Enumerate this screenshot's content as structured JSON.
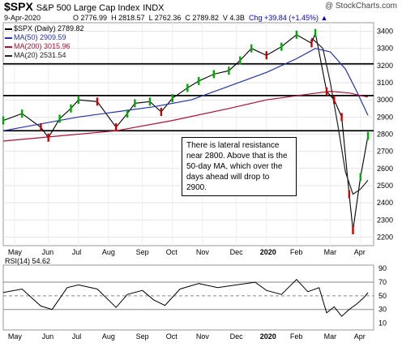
{
  "header": {
    "symbol": "$SPX",
    "name": "S&P 500 Large Cap Index",
    "exchange": "INDX",
    "date": "9-Apr-2020",
    "open": "O 2776.99",
    "high": "H 2818.57",
    "low": "L 2762.36",
    "close": "C 2789.82",
    "volume": "V 4.3B",
    "change": "Chg +39.84 (+1.45%)",
    "change_arrow": "▲",
    "logo": "@ StockCharts.com"
  },
  "legend": {
    "price": "$SPX (Daily) 2789.82",
    "ma50": "MA(50) 2909.59",
    "ma200": "MA(200) 3015.96",
    "ma20": "MA(20) 2531.54"
  },
  "annotation": "There is lateral resistance near 2800. Above that is the 50-day MA, which over the days ahead will drop to 2900.",
  "rsi_label": "RSI(14) 54.62",
  "colors": {
    "up": "#00aa00",
    "down": "#cc0000",
    "ma50": "#2233aa",
    "ma200": "#aa1133",
    "ma20": "#222222",
    "rsi": "#000000",
    "rsi_fill": "#6aa86a"
  },
  "chart_data": [
    {
      "type": "line",
      "title": "$SPX S&P 500 Large Cap Index",
      "x_labels": [
        "May",
        "Jun",
        "Jul",
        "Aug",
        "Sep",
        "Oct",
        "Nov",
        "Dec",
        "2020",
        "Feb",
        "Mar",
        "Apr"
      ],
      "y_ticks": [
        2200,
        2300,
        2400,
        2500,
        2600,
        2700,
        2800,
        2900,
        3000,
        3100,
        3200,
        3300,
        3400
      ],
      "ylim": [
        2150,
        3450
      ],
      "horizontal_lines": [
        3210,
        3025,
        2820
      ],
      "series": [
        {
          "name": "$SPX (Daily)",
          "x": [
            2019.3,
            2019.35,
            2019.4,
            2019.42,
            2019.45,
            2019.48,
            2019.5,
            2019.55,
            2019.6,
            2019.63,
            2019.65,
            2019.69,
            2019.72,
            2019.75,
            2019.79,
            2019.82,
            2019.86,
            2019.9,
            2019.93,
            2019.96,
            2020.0,
            2020.04,
            2020.08,
            2020.12,
            2020.13,
            2020.16,
            2020.18,
            2020.2,
            2020.22,
            2020.23,
            2020.25,
            2020.27
          ],
          "values": [
            2880,
            2920,
            2840,
            2780,
            2890,
            2950,
            3000,
            2990,
            2840,
            2920,
            2980,
            2990,
            2930,
            3010,
            3070,
            3110,
            3150,
            3170,
            3230,
            3300,
            3260,
            3310,
            3380,
            3330,
            3390,
            3050,
            3000,
            2900,
            2450,
            2240,
            2550,
            2789.82
          ]
        },
        {
          "name": "MA(50)",
          "x": [
            2019.3,
            2019.4,
            2019.5,
            2019.6,
            2019.7,
            2019.8,
            2019.9,
            2020.0,
            2020.08,
            2020.13,
            2020.17,
            2020.21,
            2020.24,
            2020.27
          ],
          "values": [
            2820,
            2860,
            2900,
            2930,
            2960,
            3000,
            3080,
            3160,
            3240,
            3300,
            3280,
            3180,
            3050,
            2909.59
          ]
        },
        {
          "name": "MA(200)",
          "x": [
            2019.3,
            2019.45,
            2019.6,
            2019.75,
            2019.9,
            2020.0,
            2020.1,
            2020.17,
            2020.22,
            2020.27
          ],
          "values": [
            2760,
            2790,
            2820,
            2880,
            2950,
            3000,
            3030,
            3050,
            3040,
            3015.96
          ]
        },
        {
          "name": "MA(20)",
          "x": [
            2020.12,
            2020.15,
            2020.17,
            2020.19,
            2020.21,
            2020.23,
            2020.25,
            2020.27
          ],
          "values": [
            3360,
            3300,
            3100,
            2850,
            2580,
            2450,
            2480,
            2531.54
          ]
        }
      ]
    },
    {
      "type": "line",
      "title": "RSI(14) 54.62",
      "y_ticks": [
        10,
        30,
        50,
        70,
        90
      ],
      "ylim": [
        0,
        95
      ],
      "reference_lines": [
        70,
        50,
        30
      ],
      "series": [
        {
          "name": "RSI(14)",
          "x": [
            2019.3,
            2019.35,
            2019.4,
            2019.43,
            2019.47,
            2019.5,
            2019.55,
            2019.6,
            2019.63,
            2019.67,
            2019.7,
            2019.73,
            2019.77,
            2019.82,
            2019.87,
            2019.92,
            2019.97,
            2020.0,
            2020.04,
            2020.08,
            2020.11,
            2020.14,
            2020.16,
            2020.18,
            2020.2,
            2020.22,
            2020.24,
            2020.26,
            2020.27
          ],
          "values": [
            55,
            60,
            35,
            30,
            62,
            66,
            60,
            33,
            52,
            58,
            44,
            36,
            60,
            68,
            62,
            66,
            70,
            58,
            52,
            74,
            56,
            62,
            25,
            34,
            20,
            30,
            38,
            48,
            54.62
          ]
        }
      ]
    }
  ]
}
